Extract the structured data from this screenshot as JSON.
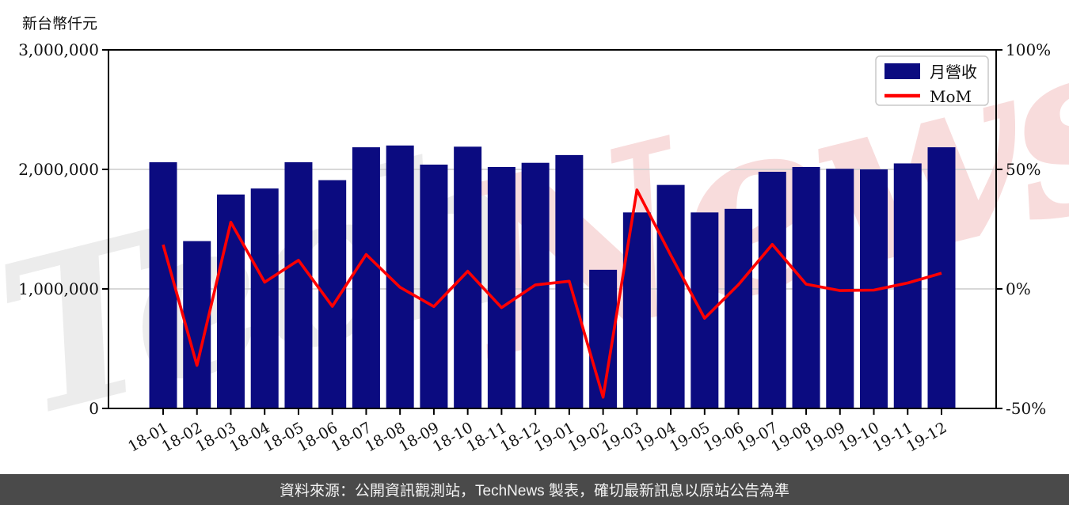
{
  "page": {
    "unit_label": "新台幣仟元",
    "footer_text": "資料來源：公開資訊觀測站，TechNews 製表，確切最新訊息以原站公告為準"
  },
  "legend": {
    "bar_label": "月營收",
    "line_label": "MoM"
  },
  "watermark": {
    "gray_text": "Tech",
    "pink_text": "News",
    "gray_color": "#ececec",
    "pink_color": "#f8dcdc"
  },
  "colors": {
    "bar": "#0b0b80",
    "line": "#ff0000",
    "grid": "#cccccc",
    "axis": "#000000",
    "tick_text": "#111111",
    "legend_border": "#c8c8c8",
    "footer_bg": "#4a4a4a",
    "footer_text": "#f2f2f2"
  },
  "chart_data": {
    "type": "bar+line",
    "title": "",
    "categories": [
      "18-01",
      "18-02",
      "18-03",
      "18-04",
      "18-05",
      "18-06",
      "18-07",
      "18-08",
      "18-09",
      "18-10",
      "18-11",
      "18-12",
      "19-01",
      "19-02",
      "19-03",
      "19-04",
      "19-05",
      "19-06",
      "19-07",
      "19-08",
      "19-09",
      "19-10",
      "19-11",
      "19-12"
    ],
    "series": [
      {
        "name": "月營收",
        "type": "bar",
        "axis": "left",
        "unit": "新台幣仟元",
        "values": [
          2060000,
          1400000,
          1790000,
          1840000,
          2060000,
          1910000,
          2185000,
          2200000,
          2040000,
          2190000,
          2020000,
          2055000,
          2120000,
          1160000,
          1640000,
          1870000,
          1640000,
          1670000,
          1980000,
          2020000,
          2005000,
          2000000,
          2050000,
          2185000
        ]
      },
      {
        "name": "MoM",
        "type": "line",
        "axis": "right",
        "unit": "%",
        "values": [
          18.5,
          -32.0,
          27.9,
          2.8,
          12.0,
          -7.3,
          14.4,
          0.7,
          -7.4,
          7.4,
          -7.8,
          1.7,
          3.2,
          -45.3,
          41.4,
          14.1,
          -12.3,
          1.8,
          18.6,
          2.0,
          -0.7,
          -0.5,
          2.5,
          6.6
        ]
      }
    ],
    "left_axis": {
      "label": "新台幣仟元",
      "range": [
        0,
        3000000
      ],
      "tick_values": [
        0,
        1000000,
        2000000,
        3000000
      ],
      "tick_labels": [
        "0",
        "1,000,000",
        "2,000,000",
        "3,000,000"
      ]
    },
    "right_axis": {
      "label": "",
      "range": [
        -50,
        100
      ],
      "tick_values": [
        -50,
        0,
        50,
        100
      ],
      "tick_labels": [
        "-50%",
        "0%",
        "50%",
        "100%"
      ]
    },
    "grid": "horizontal gridlines at interior ticks",
    "legend_position": "upper right",
    "x_tick_rotation_deg": -30
  }
}
